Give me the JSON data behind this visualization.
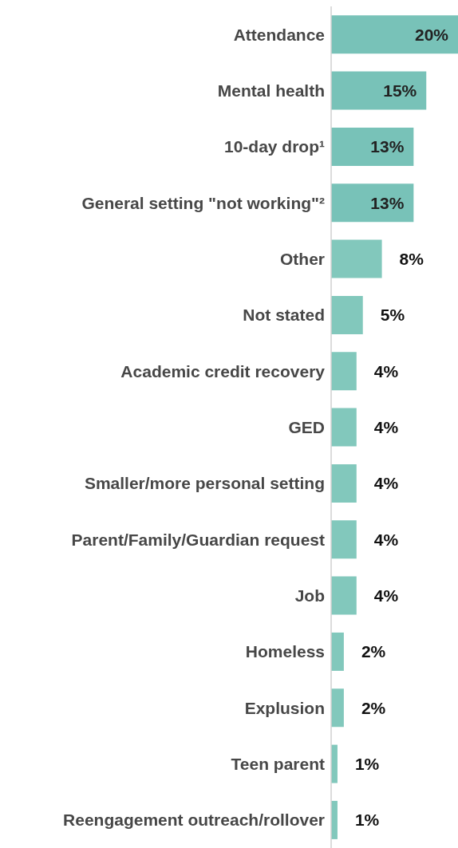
{
  "chart_data": {
    "type": "bar",
    "orientation": "horizontal",
    "categories": [
      "Attendance",
      "Mental health",
      "10-day drop¹",
      "General setting \"not working\"²",
      "Other",
      "Not stated",
      "Academic credit recovery",
      "GED",
      "Smaller/more personal setting",
      "Parent/Family/Guardian request",
      "Job",
      "Homeless",
      "Explusion",
      "Teen parent",
      "Reengagement outreach/rollover"
    ],
    "values": [
      20,
      15,
      13,
      13,
      8,
      5,
      4,
      4,
      4,
      4,
      4,
      2,
      2,
      1,
      1
    ],
    "value_labels": [
      "20%",
      "15%",
      "13%",
      "13%",
      "8%",
      "5%",
      "4%",
      "4%",
      "4%",
      "4%",
      "4%",
      "2%",
      "2%",
      "1%",
      "1%"
    ],
    "colors": [
      "#78c2b8",
      "#78c2b8",
      "#78c2b8",
      "#78c2b8",
      "#82c8bc",
      "#82c8bc",
      "#82c8bc",
      "#82c8bc",
      "#82c8bc",
      "#82c8bc",
      "#82c8bc",
      "#82c8bc",
      "#82c8bc",
      "#82c8bc",
      "#82c8bc"
    ],
    "grid": false,
    "legend": false
  }
}
